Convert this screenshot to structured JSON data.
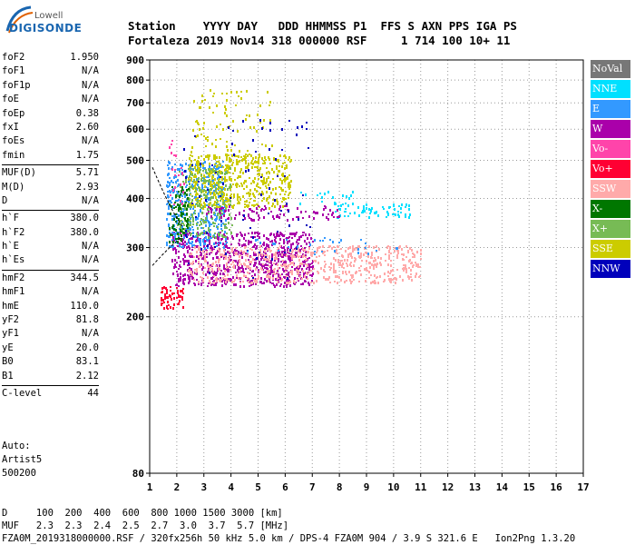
{
  "logo": {
    "line1": "Lowell",
    "line2": "DIGISONDE"
  },
  "header": {
    "labels": "Station    YYYY DAY   DDD HHMMSS P1  FFS S AXN PPS IGA PS",
    "values": "Fortaleza 2019 Nov14 318 000000 RSF     1 714 100 10+ 11"
  },
  "params": {
    "group1": [
      {
        "name": "foF2",
        "value": "1.950"
      },
      {
        "name": "foF1",
        "value": "N/A"
      },
      {
        "name": "foF1p",
        "value": "N/A"
      },
      {
        "name": "foE",
        "value": "N/A"
      },
      {
        "name": "foEp",
        "value": "0.38"
      },
      {
        "name": "fxI",
        "value": "2.60"
      },
      {
        "name": "foEs",
        "value": "N/A"
      },
      {
        "name": "fmin",
        "value": "1.75"
      }
    ],
    "group2": [
      {
        "name": "MUF(D)",
        "value": "5.71"
      },
      {
        "name": "M(D)",
        "value": "2.93"
      },
      {
        "name": "D",
        "value": "N/A"
      }
    ],
    "group3": [
      {
        "name": "h`F",
        "value": "380.0"
      },
      {
        "name": "h`F2",
        "value": "380.0"
      },
      {
        "name": "h`E",
        "value": "N/A"
      },
      {
        "name": "h`Es",
        "value": "N/A"
      }
    ],
    "group4": [
      {
        "name": "hmF2",
        "value": "344.5"
      },
      {
        "name": "hmF1",
        "value": "N/A"
      },
      {
        "name": "hmE",
        "value": "110.0"
      },
      {
        "name": "yF2",
        "value": "81.8"
      },
      {
        "name": "yF1",
        "value": "N/A"
      },
      {
        "name": "yE",
        "value": "20.0"
      },
      {
        "name": "B0",
        "value": "83.1"
      },
      {
        "name": "B1",
        "value": "2.12"
      }
    ],
    "group5": [
      {
        "name": "C-level",
        "value": "44"
      }
    ]
  },
  "auto": {
    "line1": "Auto:",
    "line2": "Artist5",
    "line3": "500200"
  },
  "footer": {
    "d_row": "D     100  200  400  600  800 1000 1500 3000 [km]",
    "muf_row": "MUF   2.3  2.3  2.4  2.5  2.7  3.0  3.7  5.7 [MHz]",
    "info": "FZA0M_2019318000000.RSF / 320fx256h 50 kHz 5.0 km / DPS-4 FZA0M 904 / 3.9 S 321.6 E   Ion2Png 1.3.20"
  },
  "legend": [
    {
      "label": "NoVal",
      "color": "#777777"
    },
    {
      "label": "NNE",
      "color": "#00e0ff"
    },
    {
      "label": "E",
      "color": "#3399ff"
    },
    {
      "label": "W",
      "color": "#aa00aa"
    },
    {
      "label": "Vo-",
      "color": "#ff44aa"
    },
    {
      "label": "Vo+",
      "color": "#ff0033"
    },
    {
      "label": "SSW",
      "color": "#ffaaaa"
    },
    {
      "label": "X-",
      "color": "#007700"
    },
    {
      "label": "X+",
      "color": "#77bb55"
    },
    {
      "label": "SSE",
      "color": "#cccc00"
    },
    {
      "label": "NNW",
      "color": "#0000bb"
    }
  ],
  "chart_data": {
    "type": "scatter",
    "title": "",
    "xlabel": "",
    "ylabel": "",
    "xlim": [
      1,
      17
    ],
    "ylim": [
      80,
      900
    ],
    "y_scale": "log",
    "x_ticks": [
      "1",
      "2",
      "3",
      "4",
      "5",
      "6",
      "7",
      "8",
      "9",
      "10",
      "11",
      "12",
      "13",
      "14",
      "15",
      "16",
      "17"
    ],
    "y_ticks": [
      "80",
      "200",
      "300",
      "400",
      "500",
      "600",
      "700",
      "800",
      "900"
    ],
    "grid": true,
    "legend_position": "right",
    "clusters": [
      {
        "series": "W",
        "x_range": [
          1.8,
          7.0
        ],
        "y_range": [
          240,
          330
        ],
        "density": 0.5
      },
      {
        "series": "SSW",
        "x_range": [
          2.4,
          11.0
        ],
        "y_range": [
          245,
          305
        ],
        "density": 0.35
      },
      {
        "series": "E",
        "x_range": [
          1.6,
          3.8
        ],
        "y_range": [
          300,
          500
        ],
        "density": 0.4
      },
      {
        "series": "SSE",
        "x_range": [
          2.4,
          6.2
        ],
        "y_range": [
          380,
          520
        ],
        "density": 0.45
      },
      {
        "series": "SSE",
        "x_range": [
          2.5,
          5.5
        ],
        "y_range": [
          500,
          760
        ],
        "density": 0.08
      },
      {
        "series": "X+",
        "x_range": [
          2.0,
          4.0
        ],
        "y_range": [
          320,
          480
        ],
        "density": 0.3
      },
      {
        "series": "X-",
        "x_range": [
          1.7,
          2.4
        ],
        "y_range": [
          310,
          430
        ],
        "density": 0.35
      },
      {
        "series": "NNE",
        "x_range": [
          7.8,
          10.6
        ],
        "y_range": [
          360,
          390
        ],
        "density": 0.35
      },
      {
        "series": "NNE",
        "x_range": [
          6.5,
          8.5
        ],
        "y_range": [
          390,
          420
        ],
        "density": 0.12
      },
      {
        "series": "W",
        "x_range": [
          3.0,
          8.0
        ],
        "y_range": [
          355,
          385
        ],
        "density": 0.25
      },
      {
        "series": "Vo+",
        "x_range": [
          1.4,
          2.2
        ],
        "y_range": [
          210,
          240
        ],
        "density": 0.6
      },
      {
        "series": "Vo-",
        "x_range": [
          1.7,
          2.3
        ],
        "y_range": [
          380,
          620
        ],
        "density": 0.08
      },
      {
        "series": "NNW",
        "x_range": [
          2.2,
          7.0
        ],
        "y_range": [
          250,
          640
        ],
        "density": 0.02
      },
      {
        "series": "E",
        "x_range": [
          4.5,
          10.2
        ],
        "y_range": [
          290,
          320
        ],
        "density": 0.06
      }
    ]
  }
}
